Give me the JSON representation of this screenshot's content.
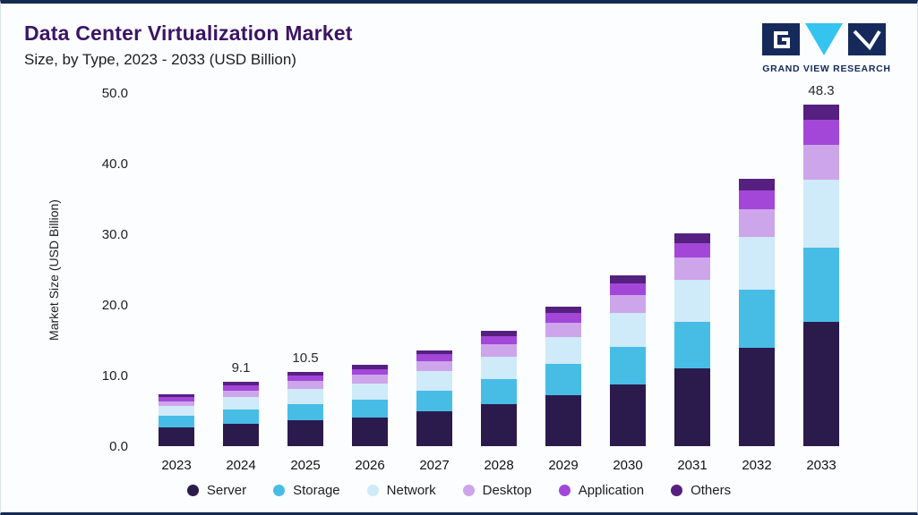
{
  "header": {
    "title": "Data Center Virtualization Market",
    "subtitle": "Size, by Type, 2023 - 2033 (USD Billion)",
    "brand": "GRAND VIEW RESEARCH"
  },
  "chart_data": {
    "type": "bar",
    "stacked": true,
    "title": "Data Center Virtualization Market Size, by Type, 2023 - 2033 (USD Billion)",
    "xlabel": "",
    "ylabel": "Market Size (USD Billion)",
    "ylim": [
      0,
      50
    ],
    "yticks": [
      0,
      10,
      20,
      30,
      40,
      50
    ],
    "ytick_labels": [
      "0.0",
      "10.0",
      "20.0",
      "30.0",
      "40.0",
      "50.0"
    ],
    "grid": false,
    "legend_position": "bottom",
    "categories": [
      "2023",
      "2024",
      "2025",
      "2026",
      "2027",
      "2028",
      "2029",
      "2030",
      "2031",
      "2032",
      "2033"
    ],
    "series": [
      {
        "name": "Server",
        "color": "#2b1b4d",
        "values": [
          2.7,
          3.2,
          3.7,
          4.1,
          4.9,
          5.9,
          7.2,
          8.8,
          11.0,
          13.9,
          17.6
        ]
      },
      {
        "name": "Storage",
        "color": "#47bde6",
        "values": [
          1.6,
          2.0,
          2.3,
          2.5,
          3.0,
          3.6,
          4.4,
          5.3,
          6.6,
          8.2,
          10.5
        ]
      },
      {
        "name": "Network",
        "color": "#cfeaf8",
        "values": [
          1.4,
          1.8,
          2.1,
          2.3,
          2.7,
          3.2,
          3.9,
          4.8,
          6.0,
          7.5,
          9.6
        ]
      },
      {
        "name": "Desktop",
        "color": "#cda5ea",
        "values": [
          0.7,
          0.9,
          1.1,
          1.2,
          1.4,
          1.7,
          2.0,
          2.5,
          3.1,
          3.9,
          5.0
        ]
      },
      {
        "name": "Application",
        "color": "#a347d8",
        "values": [
          0.6,
          0.7,
          0.8,
          0.8,
          1.0,
          1.2,
          1.4,
          1.7,
          2.1,
          2.7,
          3.5
        ]
      },
      {
        "name": "Others",
        "color": "#55207f",
        "values": [
          0.4,
          0.5,
          0.5,
          0.6,
          0.6,
          0.7,
          0.9,
          1.1,
          1.3,
          1.6,
          2.1
        ]
      }
    ],
    "totals": [
      7.4,
      9.1,
      10.5,
      11.5,
      13.6,
      16.3,
      19.8,
      24.2,
      30.1,
      37.8,
      48.3
    ],
    "total_labels": [
      "",
      "9.1",
      "10.5",
      "",
      "",
      "",
      "",
      "",
      "",
      "",
      "48.3"
    ]
  }
}
